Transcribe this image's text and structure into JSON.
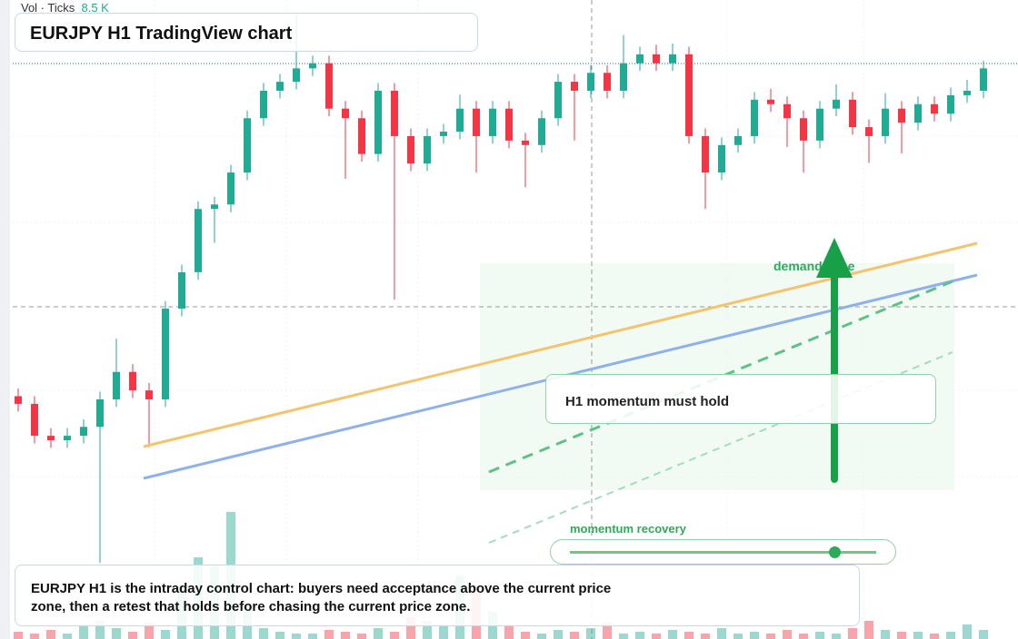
{
  "chart_data": {
    "type": "candlestick",
    "title": "EURJPY H1 TradingView chart",
    "legend_label": "Vol · Ticks",
    "legend_value": "8.5 K",
    "open": [
      38.0,
      36.8,
      31.8,
      31.1,
      31.8,
      33.2,
      37.5,
      41.8,
      38.9,
      37.5,
      51.7,
      57.4,
      67.3,
      68.0,
      73.0,
      81.5,
      85.8,
      87.2,
      89.3,
      90.1,
      83.0,
      81.5,
      75.9,
      85.8,
      78.7,
      74.4,
      78.7,
      79.4,
      83.0,
      78.7,
      83.0,
      78.0,
      77.3,
      81.5,
      87.2,
      85.8,
      88.6,
      85.8,
      90.1,
      91.5,
      90.1,
      91.5,
      78.7,
      73.0,
      77.3,
      78.7,
      84.4,
      83.7,
      81.5,
      78.0,
      83.0,
      84.4,
      80.1,
      78.7,
      83.0,
      80.8,
      83.7,
      82.2,
      85.1,
      85.8
    ],
    "high": [
      39.2,
      38.0,
      33.0,
      33.0,
      34.4,
      38.7,
      47.0,
      43.0,
      40.1,
      52.9,
      58.6,
      68.5,
      69.2,
      74.2,
      82.7,
      87.0,
      88.4,
      98.0,
      91.3,
      91.3,
      84.2,
      82.7,
      87.0,
      87.0,
      79.9,
      79.9,
      80.6,
      85.2,
      84.2,
      84.2,
      84.2,
      79.2,
      82.7,
      88.4,
      88.4,
      89.8,
      89.8,
      94.5,
      92.7,
      93.0,
      93.2,
      92.7,
      79.9,
      78.5,
      79.9,
      85.6,
      86.1,
      84.9,
      82.7,
      84.2,
      86.8,
      85.6,
      81.3,
      85.4,
      84.2,
      84.9,
      84.9,
      86.3,
      87.5,
      90.5
    ],
    "low": [
      35.6,
      30.6,
      29.9,
      29.9,
      30.6,
      11.9,
      36.3,
      37.7,
      30.0,
      36.3,
      50.5,
      56.2,
      62.0,
      66.8,
      71.8,
      80.3,
      84.6,
      86.0,
      88.1,
      81.8,
      72.0,
      74.7,
      74.7,
      53.1,
      73.2,
      73.2,
      77.5,
      78.2,
      73.0,
      77.5,
      76.8,
      70.7,
      76.1,
      80.3,
      78.0,
      84.6,
      84.6,
      84.6,
      88.9,
      88.9,
      88.9,
      77.5,
      67.3,
      71.8,
      76.1,
      77.5,
      82.5,
      77.0,
      73.0,
      76.8,
      81.8,
      78.9,
      74.5,
      77.5,
      76.0,
      79.6,
      81.0,
      81.0,
      83.9,
      84.6
    ],
    "close": [
      36.8,
      31.8,
      31.1,
      31.8,
      33.2,
      37.5,
      41.8,
      38.9,
      37.5,
      51.7,
      57.4,
      67.3,
      68.0,
      73.0,
      81.5,
      85.8,
      87.2,
      89.3,
      90.1,
      83.0,
      81.5,
      75.9,
      85.8,
      78.7,
      74.4,
      78.7,
      79.4,
      83.0,
      78.7,
      83.0,
      78.0,
      77.3,
      81.5,
      87.2,
      85.8,
      88.6,
      85.8,
      90.1,
      91.5,
      90.1,
      91.5,
      78.7,
      73.0,
      77.3,
      78.7,
      84.4,
      83.7,
      81.5,
      78.0,
      83.0,
      84.4,
      80.1,
      78.7,
      83.0,
      80.8,
      83.7,
      82.2,
      85.1,
      85.8,
      89.3
    ],
    "volume": [
      4,
      3,
      5,
      3,
      8,
      10,
      6,
      4,
      9,
      5,
      30,
      45,
      40,
      70,
      20,
      6,
      4,
      3,
      3,
      5,
      4,
      3,
      6,
      4,
      12,
      10,
      8,
      35,
      30,
      15,
      8,
      4,
      3,
      5,
      4,
      6,
      9,
      3,
      4,
      3,
      5,
      4,
      3,
      6,
      3,
      4,
      3,
      5,
      3,
      4,
      3,
      6,
      10,
      5,
      4,
      4,
      3,
      4,
      8,
      5
    ],
    "ylim": [
      0,
      100
    ],
    "vlim": [
      0,
      100
    ],
    "up_color": "#22ab94",
    "down_color": "#f23645"
  },
  "annotations": {
    "zone_label": "demand zone",
    "callout": "H1 momentum must hold",
    "slider_label": "momentum recovery",
    "summary": "EURJPY H1 is the intraday control chart: buyers need acceptance above the current price zone, then a retest that holds before chasing the current price zone."
  }
}
